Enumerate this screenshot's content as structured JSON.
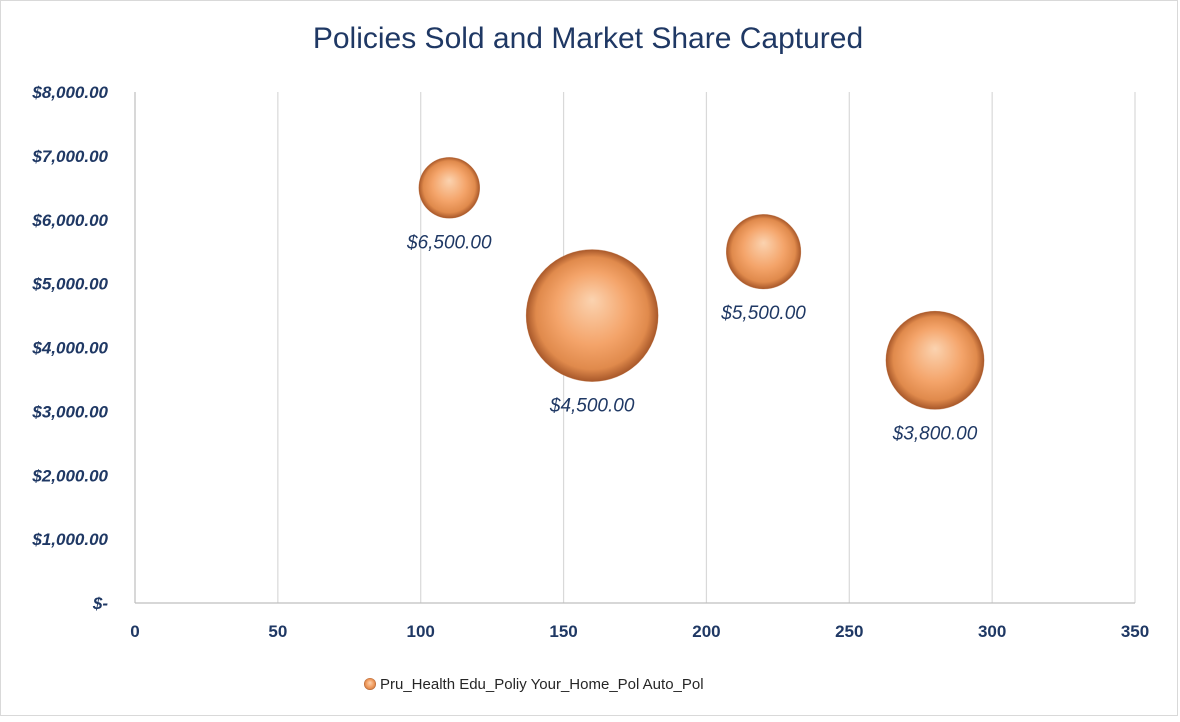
{
  "chart_data": {
    "type": "bubble",
    "title": "Policies Sold and Market Share Captured",
    "xlabel": "",
    "ylabel": "",
    "xlim": [
      0,
      350
    ],
    "ylim": [
      0,
      8000
    ],
    "x_ticks": [
      "0",
      "50",
      "100",
      "150",
      "200",
      "250",
      "300",
      "350"
    ],
    "y_ticks": [
      "$-",
      "$1,000.00",
      "$2,000.00",
      "$3,000.00",
      "$4,000.00",
      "$5,000.00",
      "$6,000.00",
      "$7,000.00",
      "$8,000.00"
    ],
    "grid": "vertical",
    "legend_position": "bottom",
    "legend_label": "Pru_Health Edu_Poliy Your_Home_Pol Auto_Pol",
    "bubble_color": "#F4A46A",
    "points": [
      {
        "x": 110,
        "y": 6500,
        "size": 1.0,
        "label": "$6,500.00"
      },
      {
        "x": 160,
        "y": 4500,
        "size": 4.7,
        "label": "$4,500.00"
      },
      {
        "x": 220,
        "y": 5500,
        "size": 1.5,
        "label": "$5,500.00"
      },
      {
        "x": 280,
        "y": 3800,
        "size": 2.6,
        "label": "$3,800.00"
      }
    ]
  }
}
